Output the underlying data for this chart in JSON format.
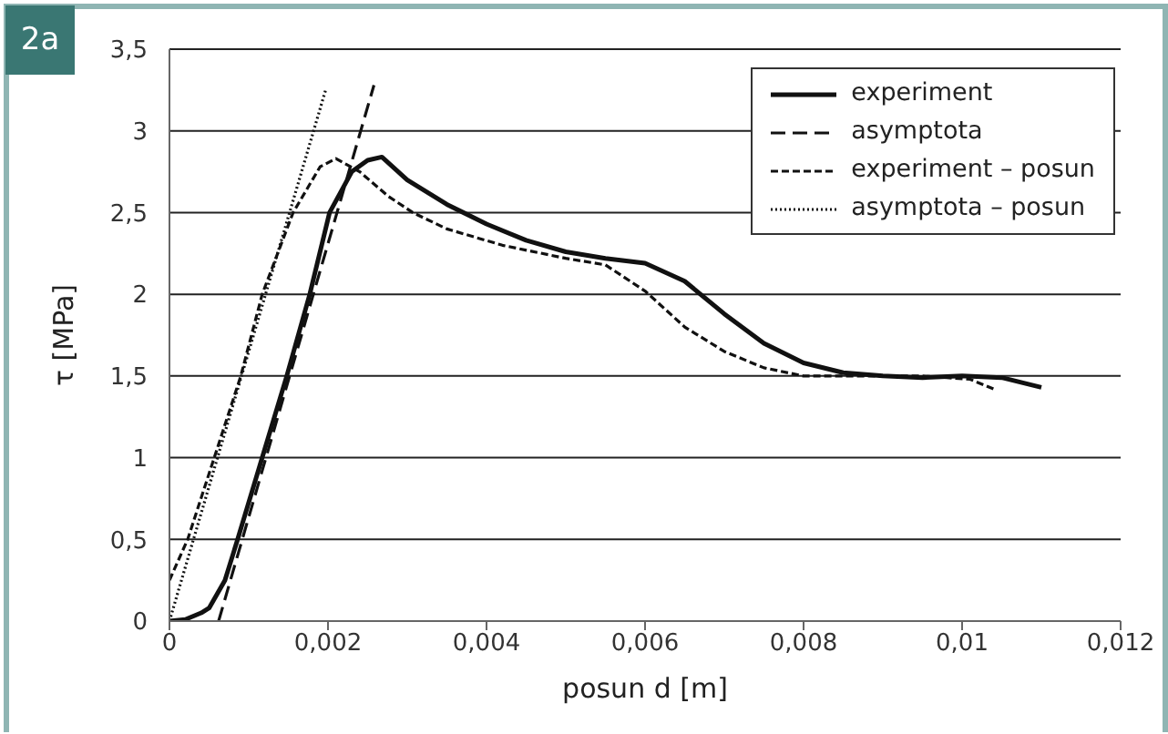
{
  "chart_data": {
    "type": "line",
    "xlabel": "posun d [m]",
    "ylabel": "τ [MPa]",
    "annotations": [
      "2a"
    ],
    "xlim": [
      0,
      0.012
    ],
    "ylim": [
      0,
      3.5
    ],
    "xticks": [
      0,
      {
        "value": 0.002,
        "label": "0,002"
      },
      {
        "value": 0.004,
        "label": "0,004"
      },
      {
        "value": 0.006,
        "label": "0,006"
      },
      {
        "value": 0.008,
        "label": "0,008"
      },
      {
        "value": 0.01,
        "label": "0,01"
      },
      {
        "value": 0.012,
        "label": "0,012"
      }
    ],
    "yticks": [
      0,
      {
        "value": 0.5,
        "label": "0,5"
      },
      1,
      {
        "value": 1.5,
        "label": "1,5"
      },
      2,
      {
        "value": 2.5,
        "label": "2,5"
      },
      3,
      {
        "value": 3.5,
        "label": "3,5"
      }
    ],
    "grid": "y",
    "legend": "top right",
    "marker": "none",
    "series": [
      {
        "name": "experiment",
        "color": "#111111",
        "line_style": "solid",
        "x": [
          0,
          0.0002,
          0.0004,
          0.0005,
          0.0007,
          0.00086,
          0.00117,
          0.00148,
          0.00177,
          0.00202,
          0.0023,
          0.0025,
          0.00268,
          0.003,
          0.0035,
          0.004,
          0.0045,
          0.005,
          0.0055,
          0.006,
          0.0065,
          0.007,
          0.0075,
          0.008,
          0.0085,
          0.009,
          0.0095,
          0.01,
          0.0105,
          0.011
        ],
        "values": [
          0,
          0.01,
          0.05,
          0.08,
          0.25,
          0.5,
          1,
          1.5,
          2,
          2.5,
          2.75,
          2.82,
          2.84,
          2.7,
          2.55,
          2.43,
          2.33,
          2.26,
          2.22,
          2.19,
          2.08,
          1.88,
          1.7,
          1.58,
          1.52,
          1.5,
          1.49,
          1.5,
          1.49,
          1.43
        ]
      },
      {
        "name": "asymptota",
        "color": "#111111",
        "line_style": "dashed",
        "x": [
          0.00062,
          0.00258
        ],
        "values": [
          0,
          3.28
        ]
      },
      {
        "name": "experiment – posun",
        "color": "#111111",
        "line_style": "dotted",
        "x": [
          0,
          0.00023,
          0.0009,
          0.00117,
          0.00156,
          0.0019,
          0.0021,
          0.0024,
          0.00276,
          0.00307,
          0.0035,
          0.0042,
          0.005,
          0.0055,
          0.006,
          0.0065,
          0.007,
          0.0075,
          0.008,
          0.009,
          0.0095,
          0.0101,
          0.0104
        ],
        "values": [
          0.25,
          0.5,
          1.5,
          2,
          2.5,
          2.78,
          2.83,
          2.75,
          2.6,
          2.5,
          2.4,
          2.3,
          2.22,
          2.18,
          2.02,
          1.8,
          1.65,
          1.55,
          1.5,
          1.5,
          1.5,
          1.48,
          1.42
        ]
      },
      {
        "name": "asymptota – posun",
        "color": "#111111",
        "line_style": "dotted_fine",
        "x": [
          0,
          0.00197
        ],
        "values": [
          0,
          3.25
        ]
      }
    ]
  }
}
